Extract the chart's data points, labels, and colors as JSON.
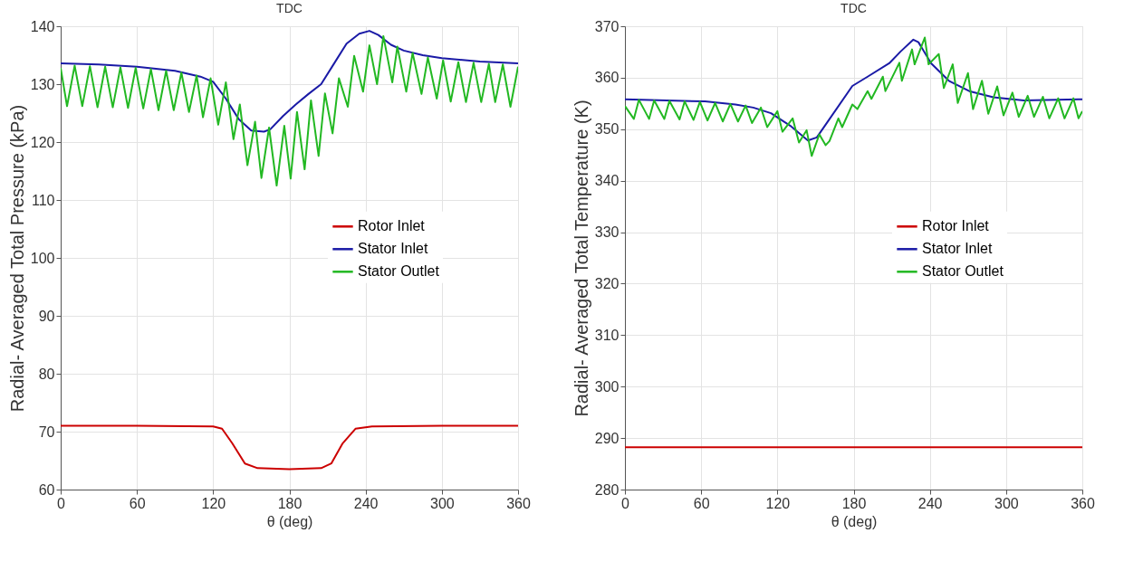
{
  "chart_data": [
    {
      "type": "line",
      "title": "TDC",
      "xlabel": "θ (deg)",
      "ylabel": "Radial- Averaged Total Pressure (kPa)",
      "xlim": [
        0,
        360
      ],
      "xticks": [
        0,
        60,
        120,
        180,
        240,
        300,
        360
      ],
      "ylim": [
        60,
        140
      ],
      "yticks": [
        60,
        70,
        80,
        90,
        100,
        110,
        120,
        130,
        140
      ],
      "grid": true,
      "legend": "right",
      "series": [
        {
          "name": "Rotor Inlet",
          "color": "#cc0000",
          "x": [
            0,
            60,
            120,
            127,
            135,
            145,
            155,
            180,
            205,
            213,
            222,
            232,
            245,
            300,
            360
          ],
          "values": [
            71,
            71,
            70.9,
            70.5,
            68,
            64.5,
            63.7,
            63.5,
            63.7,
            64.5,
            68,
            70.5,
            70.9,
            71,
            71
          ]
        },
        {
          "name": "Stator Inlet",
          "color": "#1a1aa6",
          "x": [
            0,
            30,
            60,
            90,
            110,
            120,
            130,
            140,
            150,
            160,
            165,
            175,
            185,
            195,
            205,
            215,
            225,
            235,
            243,
            250,
            260,
            270,
            285,
            300,
            330,
            360
          ],
          "values": [
            133.6,
            133.4,
            133,
            132.3,
            131.3,
            130.4,
            127.5,
            124,
            122,
            121.8,
            122.2,
            124.5,
            126.5,
            128.3,
            130,
            133.5,
            137,
            138.7,
            139.2,
            138.5,
            136.8,
            135.8,
            135,
            134.5,
            133.9,
            133.6
          ]
        },
        {
          "name": "Stator Outlet",
          "color": "#22b822",
          "x": [
            0,
            5,
            11,
            17,
            23,
            29,
            35,
            41,
            47,
            53,
            59,
            65,
            71,
            77,
            83,
            89,
            95,
            101,
            107,
            112,
            118,
            124,
            130,
            136,
            141,
            147,
            153,
            158,
            164,
            170,
            176,
            181,
            186,
            192,
            197,
            203,
            208,
            214,
            219,
            226,
            231,
            238,
            243,
            249,
            254,
            261,
            265,
            272,
            277,
            284,
            289,
            296,
            301,
            307,
            313,
            319,
            325,
            331,
            337,
            342,
            348,
            354,
            360
          ],
          "values": [
            132.8,
            126.2,
            133.2,
            126.2,
            133.1,
            126,
            133,
            126,
            132.9,
            125.9,
            132.8,
            125.8,
            132.6,
            125.5,
            132.3,
            125.5,
            132,
            125.2,
            131.5,
            124.3,
            131,
            123,
            130.3,
            120.5,
            126.5,
            116,
            123.5,
            113.8,
            122.5,
            112.5,
            122.8,
            113.7,
            125.2,
            115.3,
            127.2,
            117.6,
            128.4,
            121.5,
            131,
            126.1,
            134.9,
            128.7,
            136.7,
            130,
            138.3,
            130.3,
            136.5,
            128.7,
            135.4,
            128.3,
            134.6,
            127.5,
            134.1,
            127,
            133.8,
            126.9,
            133.7,
            126.9,
            133.5,
            126.9,
            133.4,
            126.1,
            133
          ]
        }
      ]
    },
    {
      "type": "line",
      "title": "TDC",
      "xlabel": "θ (deg)",
      "ylabel": "Radial- Averaged Total Temperature (K)",
      "xlim": [
        0,
        360
      ],
      "xticks": [
        0,
        60,
        120,
        180,
        240,
        300,
        360
      ],
      "ylim": [
        280,
        370
      ],
      "yticks": [
        280,
        290,
        300,
        310,
        320,
        330,
        340,
        350,
        360,
        370
      ],
      "grid": true,
      "legend": "right",
      "series": [
        {
          "name": "Rotor Inlet",
          "color": "#cc0000",
          "x": [
            0,
            360
          ],
          "values": [
            288.2,
            288.2
          ]
        },
        {
          "name": "Stator Inlet",
          "color": "#1a1aa6",
          "x": [
            0,
            63,
            87,
            101,
            115,
            130,
            144,
            151,
            160,
            179,
            191,
            208,
            217,
            227,
            231,
            241,
            255,
            271,
            290,
            314,
            357,
            360
          ],
          "values": [
            355.8,
            355.4,
            354.8,
            354.2,
            353.1,
            350.7,
            347.8,
            348.4,
            351.6,
            358.4,
            360.2,
            362.8,
            365.1,
            367.4,
            366.9,
            362.8,
            359.4,
            357.4,
            356.2,
            355.6,
            355.8,
            355.8
          ]
        },
        {
          "name": "Stator Outlet",
          "color": "#22b822",
          "x": [
            0,
            7,
            11,
            19,
            23,
            31,
            35,
            43,
            47,
            54,
            59,
            65,
            71,
            77,
            83,
            89,
            95,
            100,
            107,
            112,
            120,
            124,
            132,
            137,
            143,
            147,
            153,
            158,
            161,
            168,
            171,
            179,
            183,
            191,
            194,
            203,
            205,
            216,
            218,
            226,
            228,
            236,
            239,
            247,
            251,
            258,
            262,
            270,
            274,
            281,
            286,
            293,
            298,
            305,
            310,
            317,
            322,
            329,
            334,
            341,
            346,
            353,
            357,
            360
          ],
          "values": [
            354.5,
            352,
            355.7,
            352,
            355.6,
            352,
            355.5,
            351.9,
            355.4,
            351.8,
            355.3,
            351.7,
            355.1,
            351.5,
            354.9,
            351.5,
            354.6,
            351.2,
            354.2,
            350.4,
            353.5,
            349.5,
            352.1,
            347.4,
            349.8,
            344.8,
            349,
            346.9,
            347.7,
            352.1,
            350.4,
            354.8,
            353.9,
            357.4,
            355.9,
            360.2,
            357.4,
            362.9,
            359.4,
            365.5,
            362.6,
            367.8,
            362.6,
            364.6,
            358,
            362.6,
            355.1,
            360.9,
            353.9,
            359.4,
            353,
            358.3,
            352.7,
            357.1,
            352.4,
            356.5,
            352.4,
            356.3,
            352.1,
            356,
            352.1,
            356,
            352.1,
            353.5
          ]
        }
      ]
    }
  ]
}
